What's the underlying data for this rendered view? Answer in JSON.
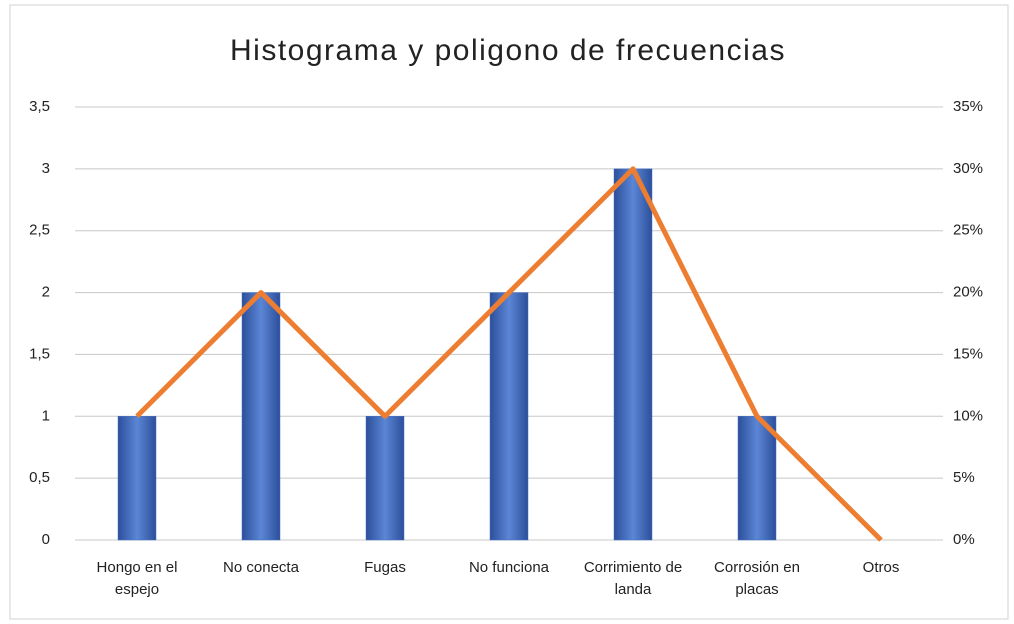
{
  "chart_data": {
    "type": "bar",
    "title": "Histograma y poligono de frecuencias",
    "categories": [
      "Hongo en el espejo",
      "No conecta",
      "Fugas",
      "No funciona",
      "Corrimiento de landa",
      "Corrosión en placas",
      "Otros"
    ],
    "series": [
      {
        "type": "bar",
        "color": "#4472c4",
        "values": [
          1,
          2,
          1,
          2,
          3,
          1,
          0
        ]
      },
      {
        "type": "line",
        "axis": "y2",
        "color": "#ed7d31",
        "values": [
          10,
          20,
          10,
          20,
          30,
          10,
          0
        ]
      }
    ],
    "ylim": [
      0,
      3.5
    ],
    "yticks": [
      0,
      {
        "value": 0.5,
        "label": "0,5"
      },
      1,
      {
        "value": 1.5,
        "label": "1,5"
      },
      2,
      {
        "value": 2.5,
        "label": "2,5"
      },
      3,
      {
        "value": 3.5,
        "label": "3,5"
      }
    ],
    "y2lim": [
      0,
      35
    ],
    "y2ticks": [
      {
        "value": 0,
        "label": "0%"
      },
      {
        "value": 5,
        "label": "5%"
      },
      {
        "value": 10,
        "label": "10%"
      },
      {
        "value": 15,
        "label": "15%"
      },
      {
        "value": 20,
        "label": "20%"
      },
      {
        "value": 25,
        "label": "25%"
      },
      {
        "value": 30,
        "label": "30%"
      },
      {
        "value": 35,
        "label": "35%"
      }
    ],
    "grid": true
  }
}
